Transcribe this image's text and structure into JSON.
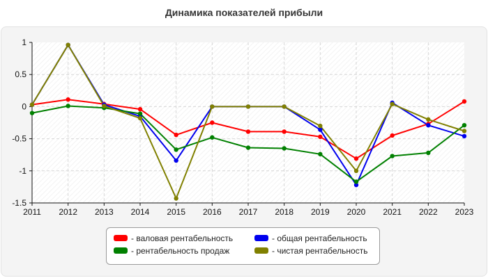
{
  "title": "Динамика показателей прибыли",
  "chart_data": {
    "type": "line",
    "title": "Динамика показателей прибыли",
    "xlabel": "",
    "ylabel": "",
    "x": [
      "2011",
      "2012",
      "2013",
      "2014",
      "2015",
      "2016",
      "2017",
      "2018",
      "2019",
      "2020",
      "2021",
      "2022",
      "2023"
    ],
    "yticks": [
      "1",
      "0.5",
      "0",
      "-0.5",
      "-1",
      "-1.5"
    ],
    "ylim": [
      -1.5,
      1
    ],
    "grid": true,
    "legend_position": "bottom",
    "series": [
      {
        "name": "- валовая рентабельность",
        "color": "#ff0000",
        "values": [
          0.03,
          0.11,
          0.04,
          -0.04,
          -0.44,
          -0.25,
          -0.39,
          -0.39,
          -0.47,
          -0.81,
          -0.45,
          -0.27,
          0.08
        ]
      },
      {
        "name": "- общая рентабельность",
        "color": "#0000ee",
        "values": [
          0.03,
          0.96,
          0.03,
          -0.15,
          -0.84,
          0.0,
          0.0,
          0.0,
          -0.36,
          -1.22,
          0.06,
          -0.29,
          -0.46
        ]
      },
      {
        "name": "- рентабельность продаж",
        "color": "#008000",
        "values": [
          -0.1,
          0.01,
          -0.02,
          -0.11,
          -0.67,
          -0.48,
          -0.64,
          -0.65,
          -0.74,
          -1.17,
          -0.77,
          -0.72,
          -0.29
        ]
      },
      {
        "name": "- чистая рентабельность",
        "color": "#808000",
        "values": [
          0.03,
          0.96,
          0.01,
          -0.18,
          -1.43,
          0.0,
          0.0,
          0.0,
          -0.3,
          -1.0,
          0.04,
          -0.2,
          -0.38
        ]
      }
    ]
  }
}
